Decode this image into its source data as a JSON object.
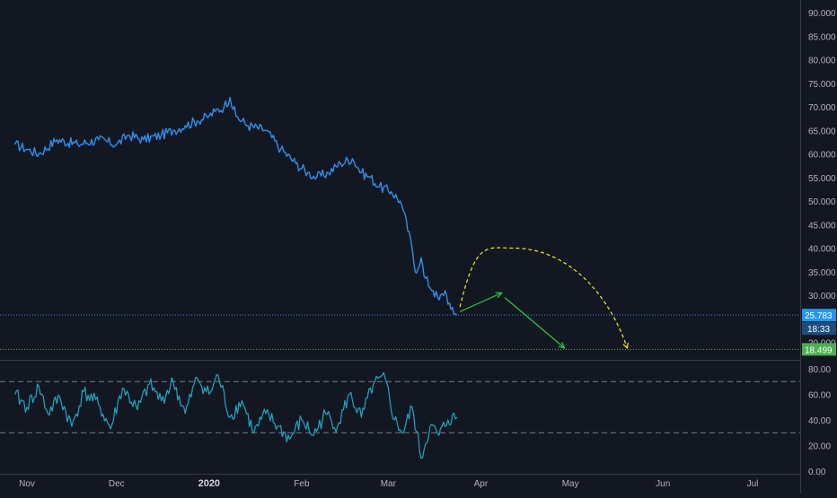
{
  "colors": {
    "background": "#131722",
    "axis_text": "#b2b5be",
    "grid": "#1e2230",
    "price_line": "#2f8fea",
    "rsi_line": "#22a6c3",
    "support_line": "#4caf50",
    "forecast_arrow": "#2ecc40",
    "forecast_arc": "#f3f014",
    "badge_blue": "#2196f3",
    "badge_green": "#4caf50"
  },
  "chart_data": [
    {
      "type": "line",
      "panel": "price",
      "y_ticks": [
        "90.000",
        "85.000",
        "80.000",
        "75.000",
        "70.000",
        "65.000",
        "60.000",
        "55.000",
        "50.000",
        "45.000",
        "40.000",
        "35.000",
        "30.000",
        "20.000"
      ],
      "ylim": [
        19,
        92
      ],
      "x_dates": [
        "2019-10-28",
        "2019-11-01",
        "2019-11-05",
        "2019-11-11",
        "2019-11-18",
        "2019-11-25",
        "2019-12-01",
        "2019-12-05",
        "2019-12-10",
        "2019-12-16",
        "2019-12-20",
        "2019-12-24",
        "2019-12-28",
        "2020-01-01",
        "2020-01-03",
        "2020-01-06",
        "2020-01-08",
        "2020-01-10",
        "2020-01-14",
        "2020-01-20",
        "2020-01-25",
        "2020-01-30",
        "2020-02-03",
        "2020-02-06",
        "2020-02-10",
        "2020-02-14",
        "2020-02-18",
        "2020-02-21",
        "2020-02-24",
        "2020-02-27",
        "2020-03-02",
        "2020-03-05",
        "2020-03-06",
        "2020-03-09",
        "2020-03-10",
        "2020-03-12",
        "2020-03-13",
        "2020-03-16",
        "2020-03-18",
        "2020-03-20",
        "2020-03-22",
        "2020-03-23",
        "2020-03-24"
      ],
      "values": [
        62,
        61,
        60,
        63,
        62,
        63,
        62,
        64,
        63,
        64,
        65,
        66,
        67,
        68,
        69,
        70,
        72,
        68,
        66,
        65,
        61,
        58,
        56,
        55,
        56,
        58,
        59,
        56,
        55,
        53,
        52,
        50,
        48,
        40,
        35,
        38,
        34,
        31,
        29,
        31,
        27,
        26,
        25.783
      ],
      "last_price": "25.783",
      "countdown": "18:33",
      "support_level": 18.499,
      "support_label": "18.499",
      "forecast": {
        "arrow_up": [
          [
            "2020-03-25",
            26.5
          ],
          [
            "2020-04-08",
            30.5
          ]
        ],
        "arrow_down": [
          [
            "2020-04-09",
            29.5
          ],
          [
            "2020-04-29",
            18.8
          ]
        ],
        "arc": [
          [
            "2020-03-25",
            27.5
          ],
          [
            "2020-04-12",
            40
          ],
          [
            "2020-05-20",
            18.8
          ]
        ]
      }
    },
    {
      "type": "line",
      "panel": "rsi",
      "y_ticks": [
        "80.00",
        "60.00",
        "40.00",
        "20.00",
        "0.00"
      ],
      "ylim": [
        0,
        85
      ],
      "levels": [
        70,
        30
      ],
      "x_dates": [
        "2019-10-28",
        "2019-11-01",
        "2019-11-05",
        "2019-11-08",
        "2019-11-12",
        "2019-11-16",
        "2019-11-20",
        "2019-11-25",
        "2019-11-29",
        "2019-12-03",
        "2019-12-08",
        "2019-12-12",
        "2019-12-16",
        "2019-12-20",
        "2019-12-24",
        "2019-12-28",
        "2020-01-01",
        "2020-01-04",
        "2020-01-08",
        "2020-01-12",
        "2020-01-16",
        "2020-01-20",
        "2020-01-24",
        "2020-01-28",
        "2020-02-01",
        "2020-02-05",
        "2020-02-09",
        "2020-02-13",
        "2020-02-17",
        "2020-02-21",
        "2020-02-25",
        "2020-02-29",
        "2020-03-03",
        "2020-03-06",
        "2020-03-09",
        "2020-03-12",
        "2020-03-15",
        "2020-03-18",
        "2020-03-21",
        "2020-03-24"
      ],
      "values": [
        60,
        50,
        66,
        45,
        58,
        35,
        62,
        52,
        33,
        65,
        48,
        68,
        55,
        70,
        45,
        73,
        60,
        75,
        42,
        55,
        30,
        45,
        35,
        25,
        40,
        28,
        45,
        35,
        60,
        42,
        68,
        72,
        40,
        30,
        50,
        10,
        35,
        28,
        40,
        42
      ]
    }
  ],
  "x_axis": {
    "ticks": [
      {
        "label": "Nov",
        "date": "2019-11-01",
        "bold": false
      },
      {
        "label": "Dec",
        "date": "2019-12-01",
        "bold": false
      },
      {
        "label": "2020",
        "date": "2020-01-01",
        "bold": true
      },
      {
        "label": "Feb",
        "date": "2020-02-01",
        "bold": false
      },
      {
        "label": "Mar",
        "date": "2020-03-01",
        "bold": false
      },
      {
        "label": "Apr",
        "date": "2020-04-01",
        "bold": false
      },
      {
        "label": "May",
        "date": "2020-05-01",
        "bold": false
      },
      {
        "label": "Jun",
        "date": "2020-06-01",
        "bold": false
      },
      {
        "label": "Jul",
        "date": "2020-07-01",
        "bold": false
      }
    ]
  }
}
